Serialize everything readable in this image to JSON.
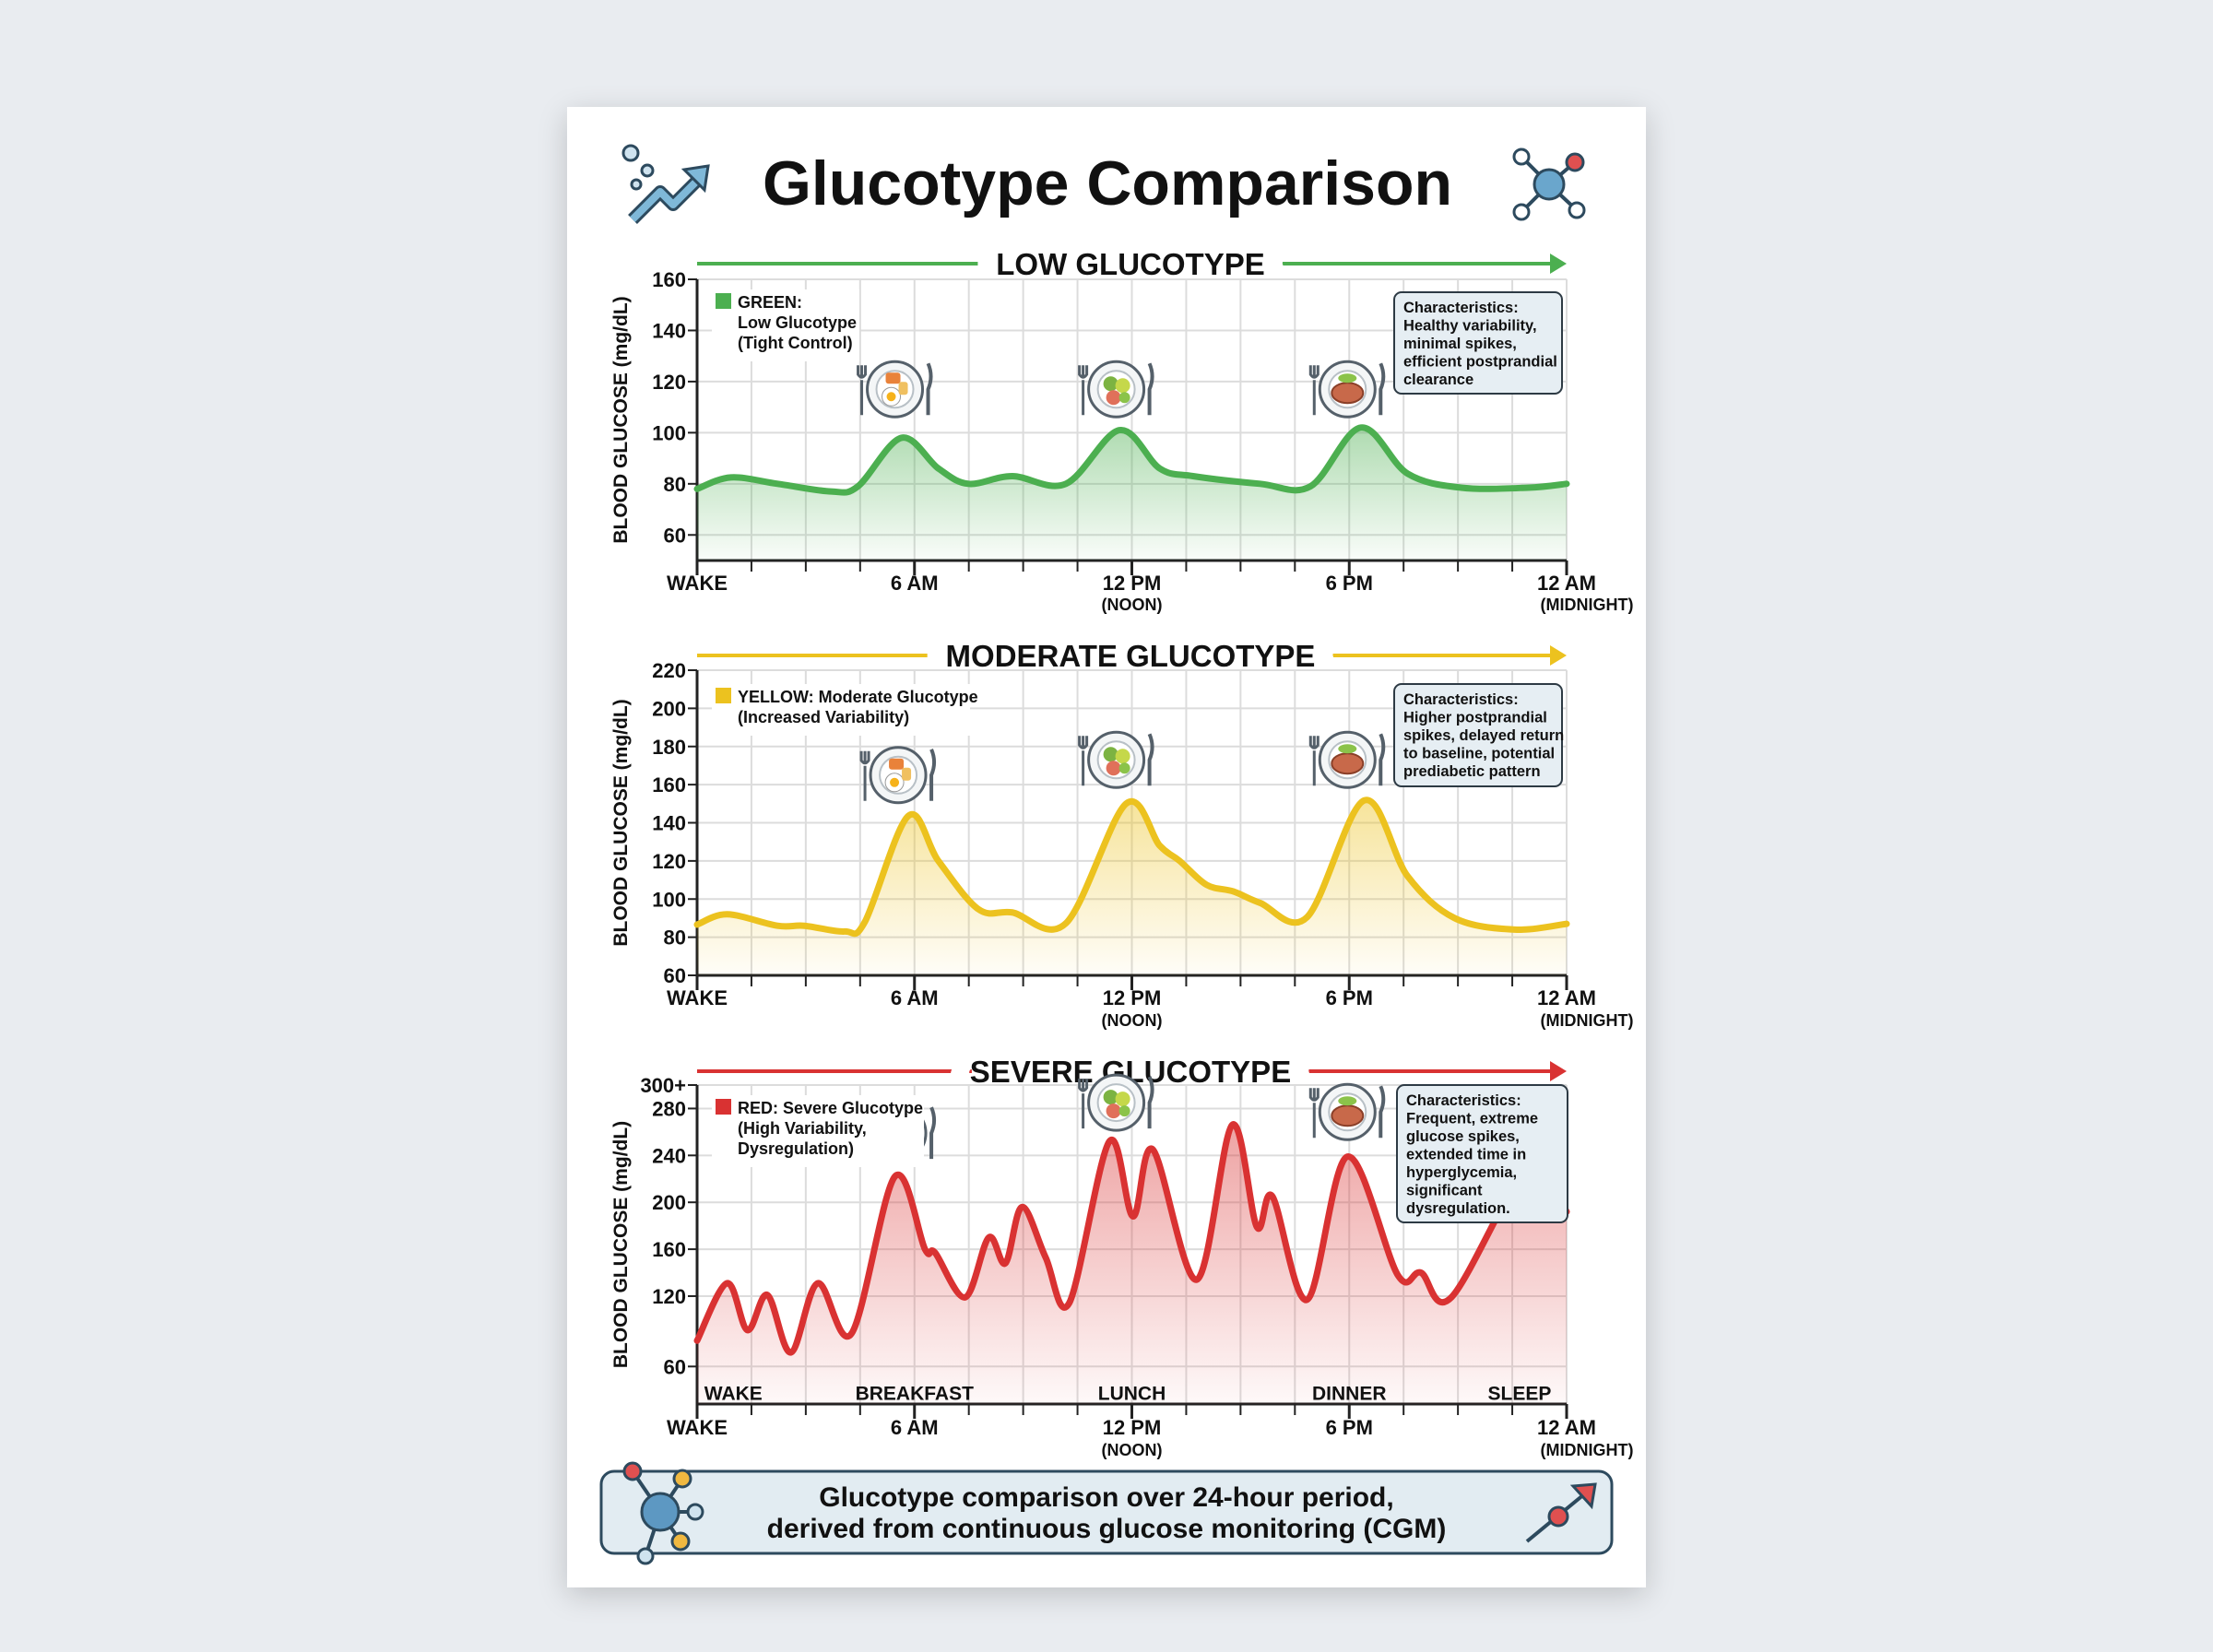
{
  "title": "Glucotype Comparison",
  "title_icons": {
    "left": "trend-arrow-bubbles-icon",
    "right": "molecule-icon"
  },
  "charts": [
    {
      "heading": "LOW GLUCOTYPE",
      "color": "#4caf50",
      "legend_lines": [
        "GREEN:",
        "Low Glucotype",
        "(Tight Control)"
      ],
      "characteristics_lines": [
        "Characteristics:",
        "Healthy variability,",
        "minimal spikes,",
        "efficient postprandial",
        "clearance"
      ],
      "meal_icons": [
        "breakfast-plate-icon",
        "lunch-plate-icon",
        "dinner-plate-icon"
      ]
    },
    {
      "heading": "MODERATE GLUCOTYPE",
      "color": "#ecc21f",
      "legend_lines": [
        "YELLOW: Moderate Glucotype",
        "(Increased Variability)"
      ],
      "characteristics_lines": [
        "Characteristics:",
        "Higher postprandial",
        "spikes, delayed return",
        "to baseline, potential",
        "prediabetic pattern"
      ],
      "meal_icons": [
        "breakfast-plate-icon",
        "lunch-plate-icon",
        "dinner-plate-icon"
      ]
    },
    {
      "heading": "SEVERE GLUCOTYPE",
      "color": "#d93232",
      "legend_lines": [
        "RED: Severe Glucotype",
        "(High Variability,",
        "Dysregulation)"
      ],
      "characteristics_lines": [
        "Characteristics:",
        "Frequent, extreme",
        "glucose spikes,",
        "extended time in",
        "hyperglycemia,",
        "significant",
        "dysregulation."
      ],
      "meal_icons": [
        "breakfast-plate-icon",
        "lunch-plate-icon",
        "dinner-plate-icon"
      ],
      "event_labels": [
        "WAKE",
        "BREAKFAST",
        "LUNCH",
        "DINNER",
        "SLEEP"
      ]
    }
  ],
  "footer": {
    "lines": [
      "Glucotype comparison over 24-hour period,",
      "derived from continuous glucose monitoring (CGM)"
    ],
    "icons": {
      "left": "molecule-icon",
      "right": "arrow-up-right-icon"
    }
  },
  "chart_data": [
    {
      "type": "line",
      "title": "LOW GLUCOTYPE",
      "ylabel": "BLOOD GLUCOSE (mg/dL)",
      "xlim": [
        0,
        24
      ],
      "ylim": [
        50,
        160
      ],
      "yticks": [
        60,
        80,
        100,
        120,
        140,
        160
      ],
      "ytick_labels": [
        "60",
        "80",
        "100",
        "120",
        "140",
        "160"
      ],
      "xticks": [
        {
          "x": 0,
          "label": "WAKE",
          "sub": ""
        },
        {
          "x": 6,
          "label": "6 AM",
          "sub": ""
        },
        {
          "x": 12,
          "label": "12 PM",
          "sub": "(NOON)"
        },
        {
          "x": 18,
          "label": "6 PM",
          "sub": ""
        },
        {
          "x": 24,
          "label": "12 AM",
          "sub": "(MIDNIGHT)"
        }
      ],
      "grid": true,
      "series": [
        {
          "name": "GREEN: Low Glucotype (Tight Control)",
          "color": "#4caf50",
          "x": [
            0,
            0.93,
            2.22,
            3.7,
            4.44,
            5.64,
            6.66,
            7.49,
            8.7,
            10.18,
            11.66,
            12.77,
            13.69,
            15.54,
            16.93,
            18.32,
            19.61,
            21.09,
            22.94,
            24
          ],
          "y": [
            78,
            82.5,
            80,
            77,
            79,
            98,
            86,
            80,
            83,
            80,
            101,
            86,
            83,
            80,
            79,
            102,
            84,
            78.5,
            78.5,
            80
          ]
        }
      ]
    },
    {
      "type": "line",
      "title": "MODERATE GLUCOTYPE",
      "ylabel": "BLOOD GLUCOSE (mg/dL)",
      "xlim": [
        0,
        24
      ],
      "ylim": [
        60,
        220
      ],
      "yticks": [
        60,
        80,
        100,
        120,
        140,
        160,
        180,
        200,
        220
      ],
      "ytick_labels": [
        "60",
        "80",
        "100",
        "120",
        "140",
        "160",
        "180",
        "200",
        "220"
      ],
      "xticks": [
        {
          "x": 0,
          "label": "WAKE",
          "sub": ""
        },
        {
          "x": 6,
          "label": "6 AM",
          "sub": ""
        },
        {
          "x": 12,
          "label": "12 PM",
          "sub": "(NOON)"
        },
        {
          "x": 18,
          "label": "6 PM",
          "sub": ""
        },
        {
          "x": 24,
          "label": "12 AM",
          "sub": "(MIDNIGHT)"
        }
      ],
      "grid": true,
      "series": [
        {
          "name": "YELLOW: Moderate Glucotype (Increased Variability)",
          "color": "#ecc21f",
          "x": [
            0,
            0.83,
            2.22,
            2.96,
            4.07,
            4.63,
            5.83,
            6.66,
            7.77,
            8.7,
            10.18,
            11.84,
            12.77,
            13.32,
            14.06,
            14.8,
            15.54,
            16.84,
            18.41,
            19.61,
            20.91,
            22.57,
            24
          ],
          "y": [
            86.6,
            92,
            86,
            86,
            83,
            88,
            143.6,
            120,
            94.6,
            93,
            87.3,
            150,
            128,
            120,
            107.5,
            104,
            98,
            90.6,
            151.7,
            112,
            90,
            84,
            87
          ]
        }
      ]
    },
    {
      "type": "line",
      "title": "SEVERE GLUCOTYPE",
      "ylabel": "BLOOD GLUCOSE (mg/dL)",
      "xlim": [
        0,
        24
      ],
      "ylim": [
        28,
        300
      ],
      "yticks": [
        60,
        120,
        160,
        200,
        240,
        280,
        300
      ],
      "ytick_labels": [
        "60",
        "120",
        "160",
        "200",
        "240",
        "280",
        "300+"
      ],
      "xticks": [
        {
          "x": 0,
          "label": "WAKE",
          "sub": ""
        },
        {
          "x": 6,
          "label": "6 AM",
          "sub": ""
        },
        {
          "x": 12,
          "label": "12 PM",
          "sub": "(NOON)"
        },
        {
          "x": 18,
          "label": "6 PM",
          "sub": ""
        },
        {
          "x": 24,
          "label": "12 AM",
          "sub": "(MIDNIGHT)"
        }
      ],
      "annotations": [
        {
          "x": 1,
          "label": "WAKE"
        },
        {
          "x": 6,
          "label": "BREAKFAST"
        },
        {
          "x": 12,
          "label": "LUNCH"
        },
        {
          "x": 18,
          "label": "DINNER"
        },
        {
          "x": 22.7,
          "label": "SLEEP"
        }
      ],
      "grid": true,
      "series": [
        {
          "name": "RED: Severe Glucotype (High Variability, Dysregulation)",
          "color": "#d93232",
          "x": [
            0,
            0.83,
            1.39,
            1.94,
            2.59,
            3.33,
            4.26,
            5.46,
            6.29,
            6.57,
            7.4,
            8.05,
            8.51,
            8.97,
            9.62,
            10.27,
            11.38,
            12.03,
            12.58,
            13.79,
            14.77,
            15.45,
            15.88,
            16.84,
            17.95,
            19.34,
            19.98,
            20.82,
            23.04,
            24
          ],
          "y": [
            82,
            131,
            91,
            121,
            72,
            131,
            88,
            222,
            160,
            157,
            119,
            170,
            148,
            196,
            153,
            114,
            252,
            188,
            245,
            134,
            266,
            179,
            205,
            117,
            239,
            138,
            140,
            119,
            235,
            192
          ]
        }
      ]
    }
  ]
}
